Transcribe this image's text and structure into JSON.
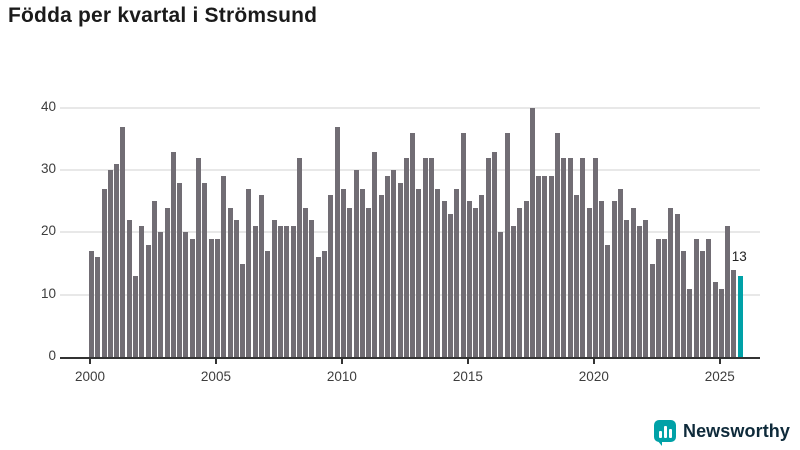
{
  "title": "Födda per kvartal i Strömsund",
  "chart_data": {
    "type": "bar",
    "title": "Födda per kvartal i Strömsund",
    "xlabel": "",
    "ylabel": "",
    "ylim": [
      0,
      40
    ],
    "grid": "horizontal",
    "y_ticks": [
      0,
      10,
      20,
      30,
      40
    ],
    "x_tick_labels": [
      "2000",
      "2005",
      "2010",
      "2015",
      "2020",
      "2025"
    ],
    "quarters_start": "2000 Q1",
    "quarters_end": "2025 Q4",
    "values": [
      17,
      16,
      27,
      30,
      31,
      37,
      22,
      13,
      21,
      18,
      25,
      20,
      24,
      33,
      28,
      20,
      19,
      32,
      28,
      19,
      19,
      29,
      24,
      22,
      15,
      27,
      21,
      26,
      17,
      22,
      21,
      21,
      21,
      32,
      24,
      22,
      16,
      17,
      26,
      37,
      27,
      24,
      30,
      27,
      24,
      33,
      26,
      29,
      30,
      28,
      32,
      36,
      27,
      32,
      32,
      27,
      25,
      23,
      27,
      36,
      25,
      24,
      26,
      32,
      33,
      20,
      36,
      21,
      24,
      25,
      40,
      29,
      29,
      29,
      36,
      32,
      32,
      26,
      32,
      24,
      32,
      25,
      18,
      25,
      27,
      22,
      24,
      21,
      22,
      15,
      19,
      19,
      24,
      23,
      17,
      11,
      19,
      17,
      19,
      12,
      11,
      21,
      14,
      13
    ],
    "highlight": {
      "index": 103,
      "value": 13,
      "label": "13"
    }
  },
  "colors": {
    "bar": "#716d74",
    "highlight": "#00a1a7",
    "grid": "#e8e8e8",
    "axis": "#333333",
    "text": "#3d3d3d",
    "title_text": "#1b1b1b",
    "logo_teal": "#00a1a7",
    "logo_navy": "#0e2a3a"
  },
  "footer": {
    "brand": "Newsworthy"
  }
}
